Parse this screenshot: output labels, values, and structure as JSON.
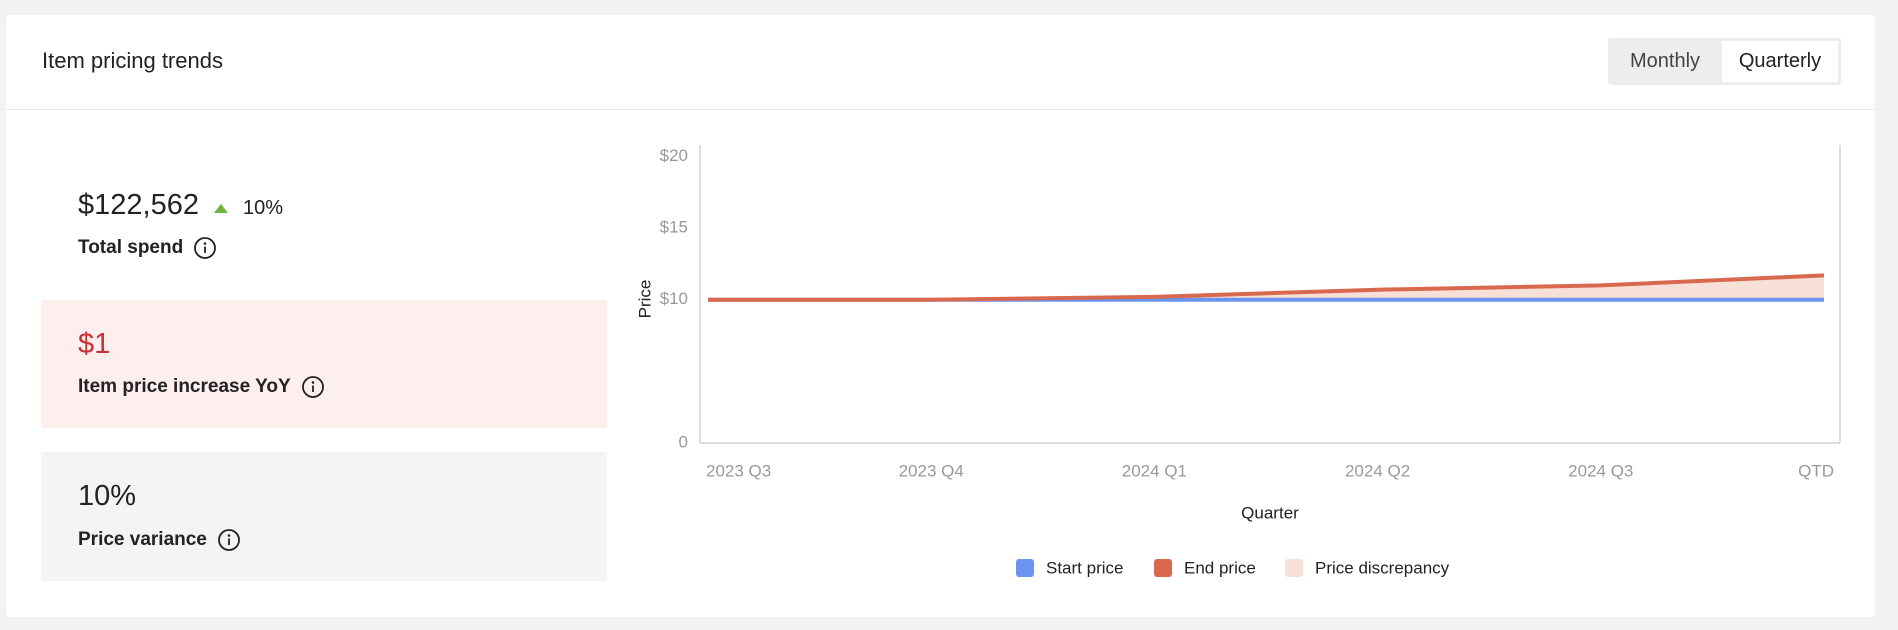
{
  "header": {
    "title": "Item pricing trends",
    "toggle": [
      "Monthly",
      "Quarterly"
    ]
  },
  "stats": [
    {
      "value": "$122,562",
      "change": "10%",
      "label": "Total spend"
    },
    {
      "value": "$1",
      "label": "Item price increase YoY"
    },
    {
      "value": "10%",
      "label": "Price variance"
    }
  ],
  "chart_data": {
    "type": "line",
    "x_label": "Quarter",
    "y_label": "Price",
    "categories": [
      "2023 Q3",
      "2023 Q4",
      "2024 Q1",
      "2024 Q2",
      "2024 Q3",
      "QTD"
    ],
    "series": [
      {
        "name": "Start price",
        "color": "#6b93f0",
        "values": [
          10,
          10,
          10,
          10,
          10,
          10
        ]
      },
      {
        "name": "End price",
        "color": "#d9694e",
        "values": [
          10,
          10,
          10.2,
          10.7,
          11,
          11.7
        ]
      }
    ],
    "area": {
      "name": "Price discrepancy",
      "color": "#f7e0d8"
    },
    "ylim": [
      0,
      20.8
    ],
    "yticks": [
      0,
      {
        "value": 10,
        "label": "$10"
      },
      {
        "value": 15,
        "label": "$15"
      },
      {
        "value": 20,
        "label": "$20"
      }
    ],
    "grid": false
  }
}
